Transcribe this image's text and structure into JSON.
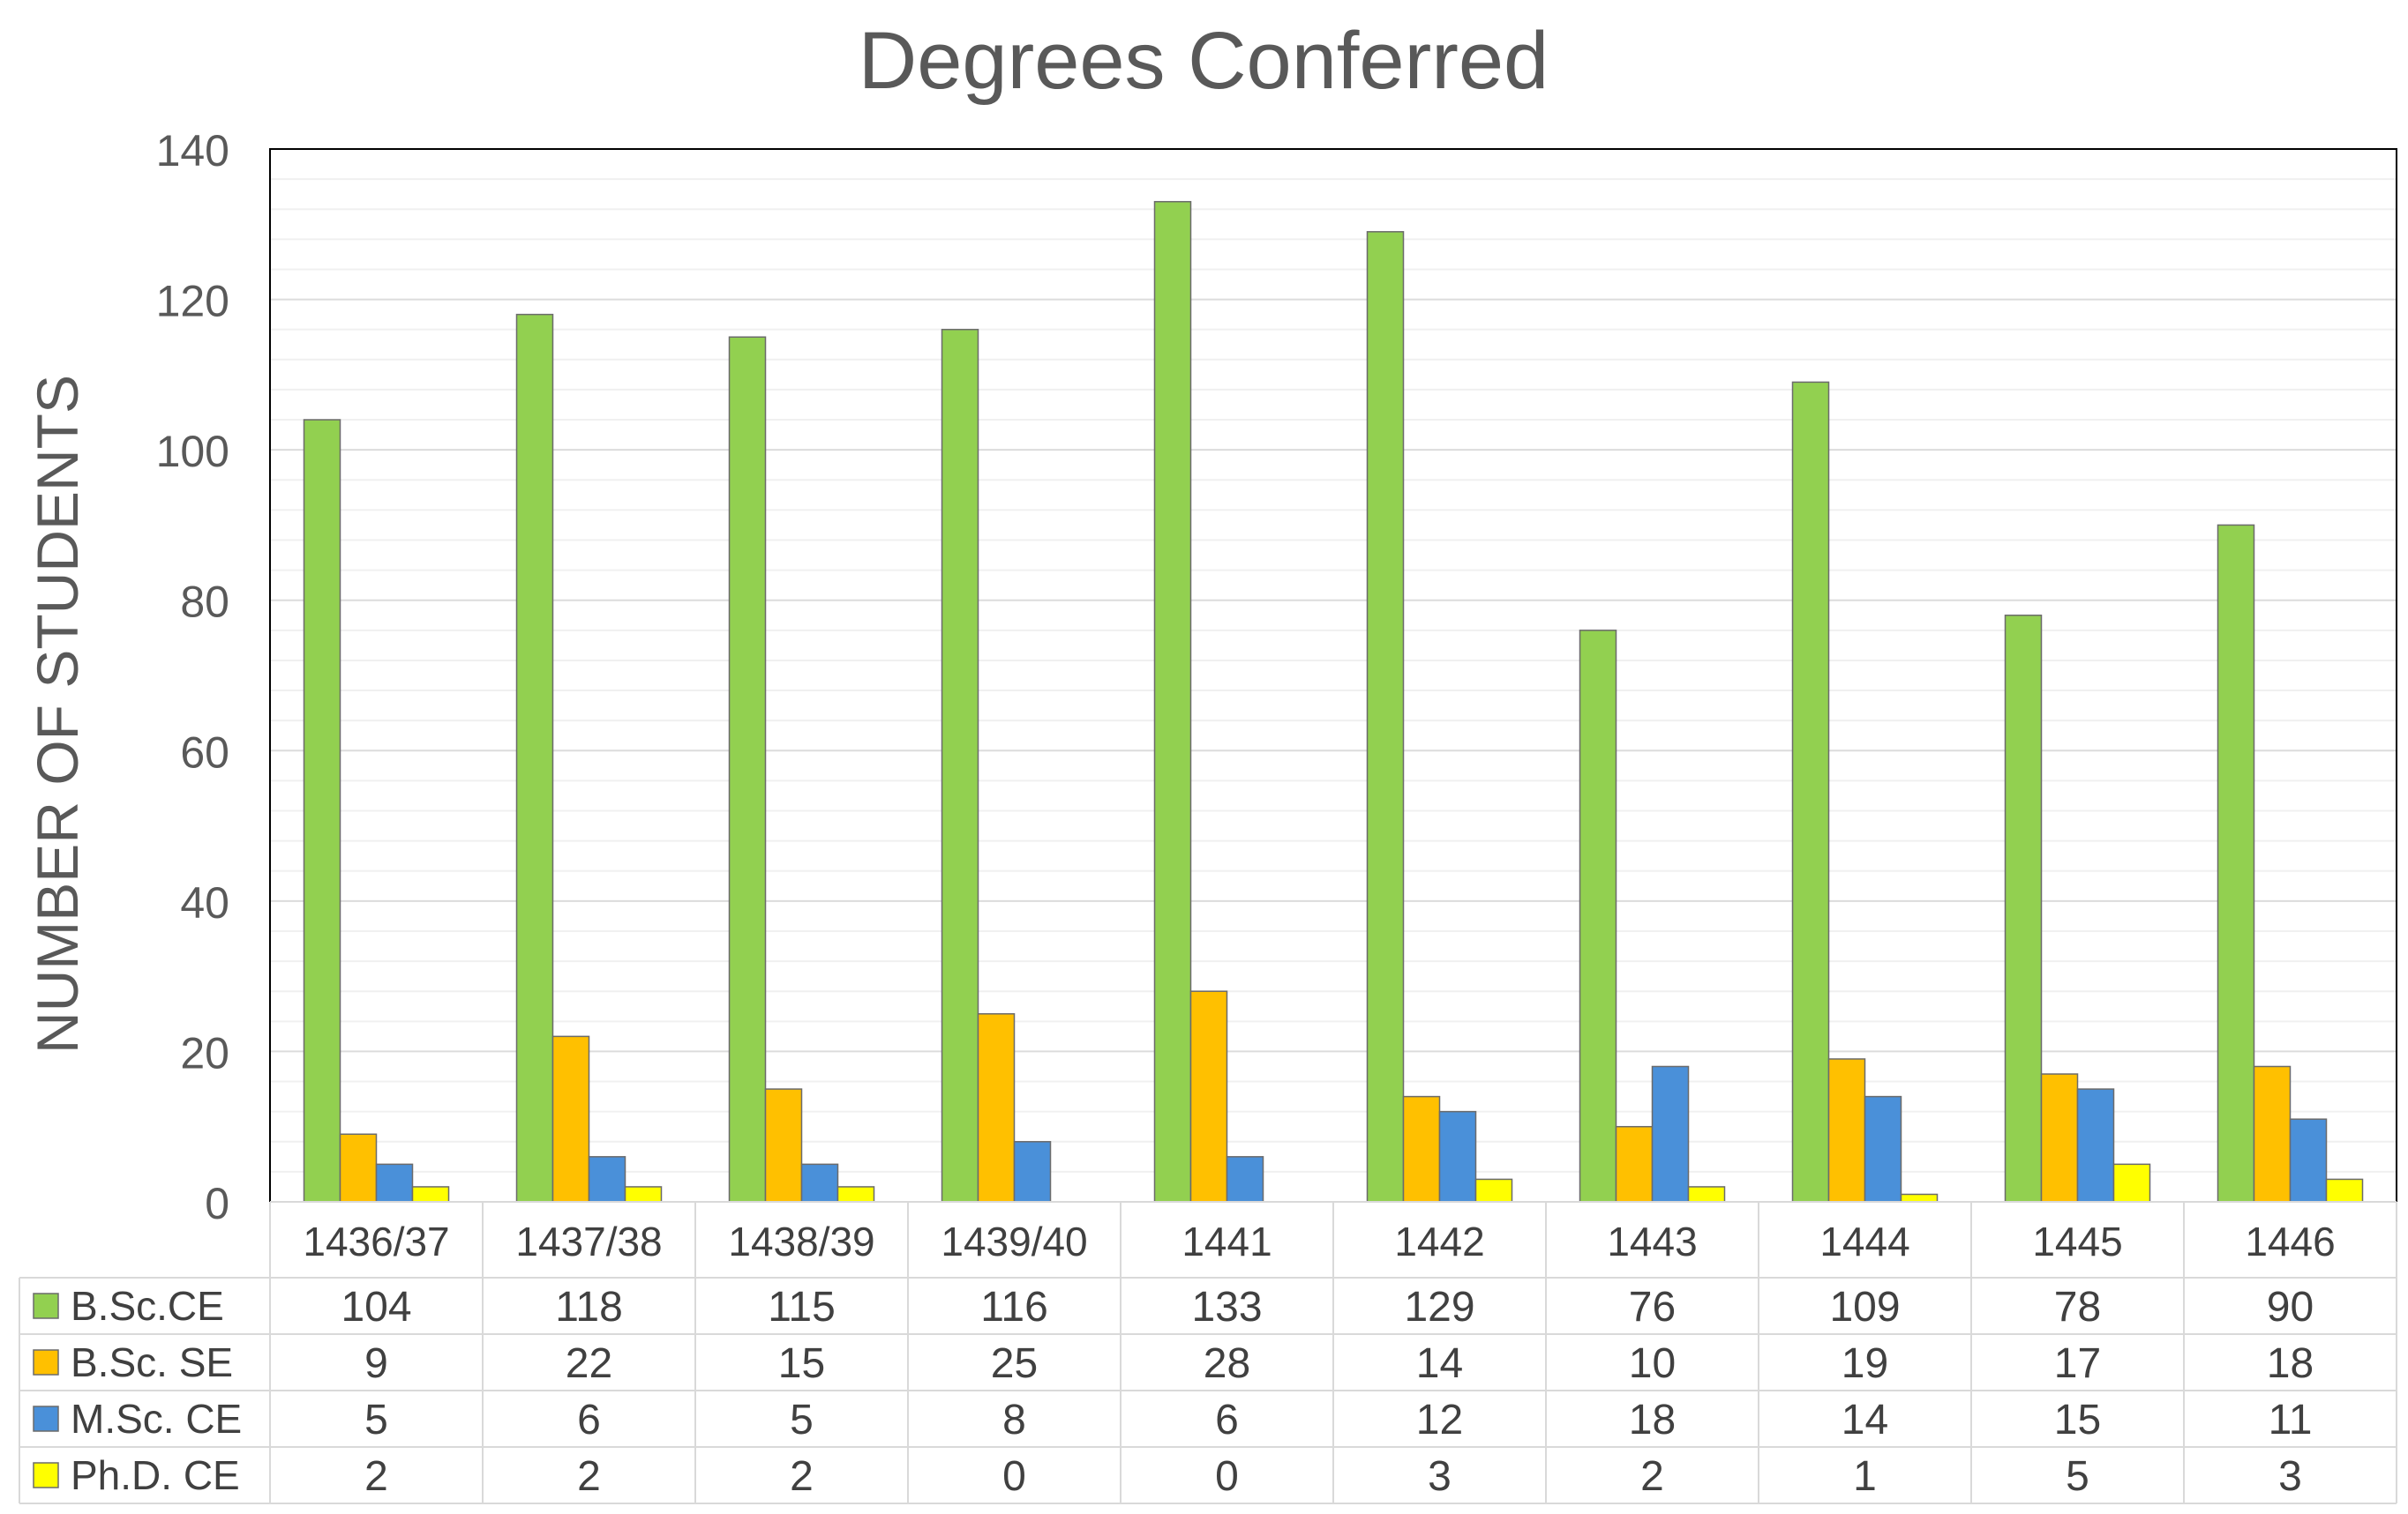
{
  "chart_data": {
    "type": "bar",
    "title": "Degrees Conferred",
    "ylabel": "NUMBER OF STUDENTS",
    "xlabel": "",
    "ylim": [
      0,
      140
    ],
    "yticks": [
      0,
      20,
      40,
      60,
      80,
      100,
      120,
      140
    ],
    "grid": "horizontal",
    "legend": "data-table",
    "categories": [
      "1436/37",
      "1437/38",
      "1438/39",
      "1439/40",
      "1441",
      "1442",
      "1443",
      "1444",
      "1445",
      "1446"
    ],
    "series": [
      {
        "name": "B.Sc.CE",
        "color": "#92d050",
        "values": [
          104,
          118,
          115,
          116,
          133,
          129,
          76,
          109,
          78,
          90
        ]
      },
      {
        "name": "B.Sc. SE",
        "color": "#ffc000",
        "values": [
          9,
          22,
          15,
          25,
          28,
          14,
          10,
          19,
          17,
          18
        ]
      },
      {
        "name": "M.Sc. CE",
        "color": "#4a90d9",
        "values": [
          5,
          6,
          5,
          8,
          6,
          12,
          18,
          14,
          15,
          11
        ]
      },
      {
        "name": "Ph.D. CE",
        "color": "#ffff00",
        "values": [
          2,
          2,
          2,
          0,
          0,
          3,
          2,
          1,
          5,
          3
        ]
      }
    ]
  }
}
